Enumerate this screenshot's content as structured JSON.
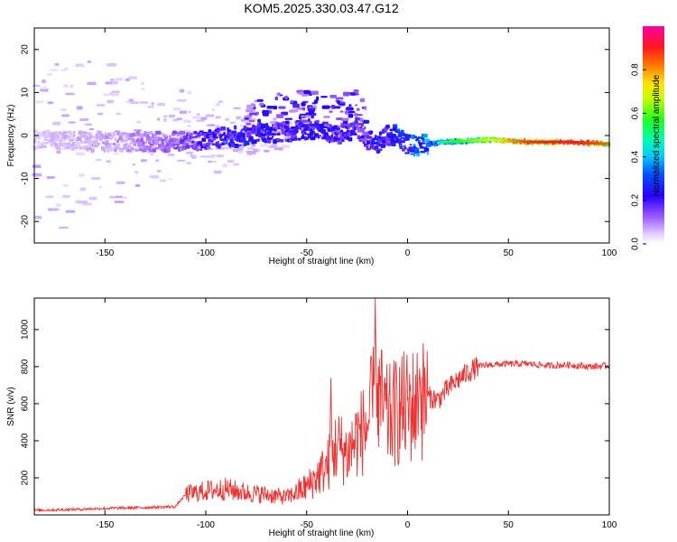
{
  "chart_data": [
    {
      "type": "heatmap",
      "title": "KOM5.2025.330.03.47.G12",
      "xlabel": "Height of straight line (km)",
      "ylabel": "Frequency (Hz)",
      "xlim": [
        -185,
        100
      ],
      "ylim": [
        -25,
        25
      ],
      "x_ticks": [
        -150,
        -100,
        -50,
        0,
        50,
        100
      ],
      "x_tick_labels": [
        "-150",
        "-100",
        "-50",
        "0",
        "50",
        "100"
      ],
      "y_ticks": [
        20,
        10,
        0,
        -10,
        -20
      ],
      "y_tick_labels": [
        "20",
        "10",
        "0",
        "-10",
        "-20"
      ],
      "colorbar": {
        "label": "Normalized spectral amplitude",
        "range": [
          0,
          1
        ],
        "ticks": [
          0.0,
          0.2,
          0.4,
          0.6,
          0.8
        ],
        "tick_labels": [
          "0.0",
          "0.2",
          "0.4",
          "0.6",
          "0.8"
        ]
      },
      "ridge": {
        "description_points_height_km": [
          -185,
          -150,
          -120,
          -100,
          -80,
          -60,
          -45,
          -35,
          -25,
          -20,
          -15,
          -10,
          -5,
          0,
          5,
          10,
          20,
          40,
          60,
          80,
          100
        ],
        "frequency_hz": [
          -1,
          -1.5,
          -1.5,
          -1,
          0,
          1,
          1.5,
          0,
          2,
          -1,
          -2,
          0,
          0,
          -2,
          -2.5,
          -2,
          -1.5,
          -1,
          -1.5,
          -1.5,
          -2
        ],
        "amplitude": [
          0.05,
          0.08,
          0.12,
          0.2,
          0.25,
          0.2,
          0.25,
          0.2,
          0.2,
          0.2,
          0.25,
          0.2,
          0.3,
          0.25,
          0.35,
          0.35,
          0.45,
          0.6,
          0.8,
          0.85,
          0.75
        ]
      }
    },
    {
      "type": "line",
      "title": "",
      "xlabel": "Height of straight line (km)",
      "ylabel": "SNR (v/v)",
      "xlim": [
        -185,
        100
      ],
      "ylim": [
        0,
        1170
      ],
      "x_ticks": [
        -150,
        -100,
        -50,
        0,
        50,
        100
      ],
      "x_tick_labels": [
        "-150",
        "-100",
        "-50",
        "0",
        "50",
        "100"
      ],
      "y_ticks": [
        200,
        400,
        600,
        800,
        1000
      ],
      "y_tick_labels": [
        "200",
        "400",
        "600",
        "800",
        "1000"
      ],
      "series": [
        {
          "name": "SNR",
          "color": "#ee3333",
          "x": [
            -185,
            -170,
            -150,
            -130,
            -115,
            -110,
            -100,
            -90,
            -80,
            -70,
            -60,
            -50,
            -40,
            -35,
            -30,
            -25,
            -20,
            -17,
            -15,
            -10,
            -5,
            0,
            5,
            10,
            15,
            20,
            25,
            30,
            35,
            40,
            50,
            60,
            70,
            80,
            90,
            100
          ],
          "y": [
            25,
            28,
            35,
            40,
            45,
            110,
            130,
            140,
            120,
            110,
            95,
            150,
            260,
            380,
            330,
            420,
            480,
            600,
            650,
            520,
            560,
            580,
            600,
            640,
            620,
            680,
            730,
            770,
            800,
            810,
            815,
            815,
            805,
            810,
            800,
            805
          ],
          "spikes": [
            {
              "x": -16,
              "y": 1170
            },
            {
              "x": -18,
              "y": 800
            },
            {
              "x": -38,
              "y": 740
            },
            {
              "x": 6,
              "y": 790
            }
          ]
        }
      ]
    }
  ]
}
